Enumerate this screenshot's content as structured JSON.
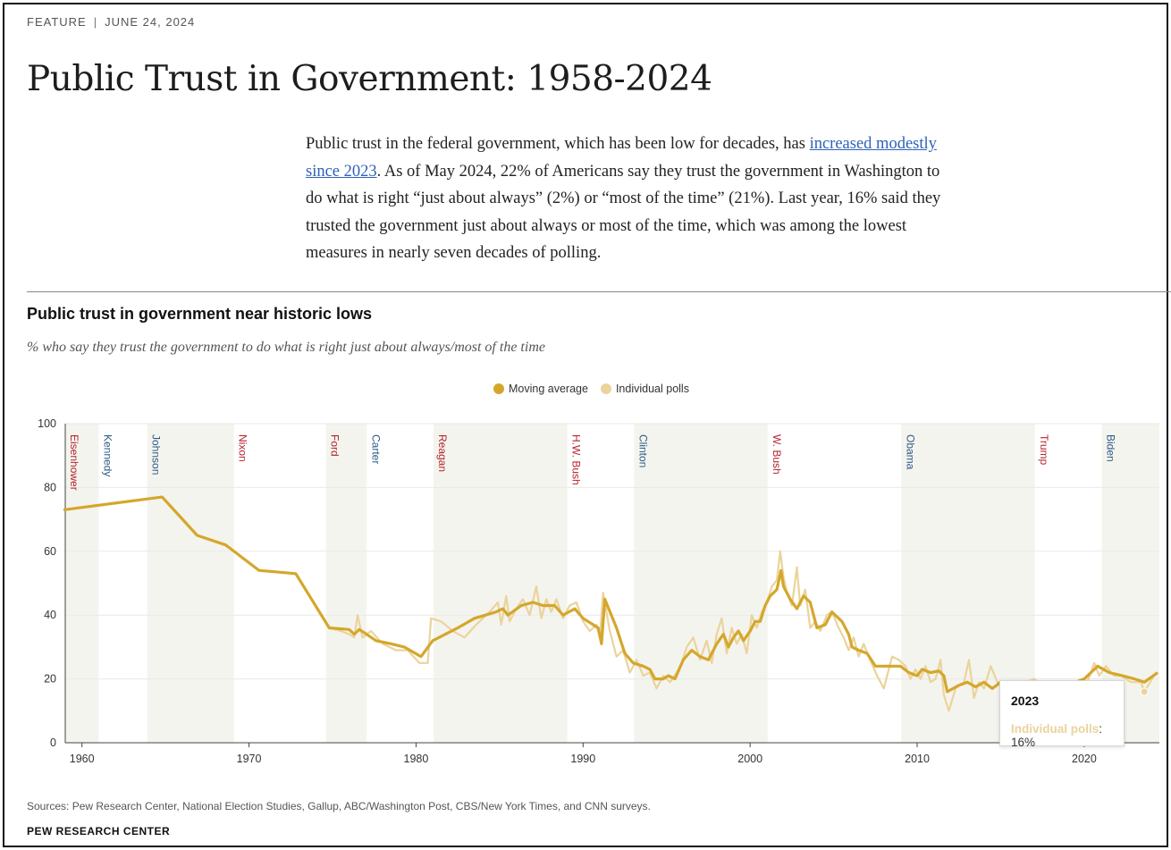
{
  "kicker": {
    "section": "FEATURE",
    "separator": "|",
    "date": "JUNE 24, 2024"
  },
  "headline": "Public Trust in Government: 1958-2024",
  "intro": {
    "before_link": "Public trust in the federal government, which has been low for decades, has ",
    "link_text": "increased modestly since 2023",
    "after_link": ". As of May 2024, 22% of Americans say they trust the government in Washington to do what is right “just about always” (2%) or “most of the time” (21%). Last year, 16% said they trusted the government just about always or most of the time, which was among the lowest measures in nearly seven decades of polling."
  },
  "colors": {
    "moving_average": "#d4a72c",
    "individual_polls": "#ebd39b",
    "republican": "#b5242c",
    "democrat": "#2c5a87",
    "term_band": "#f4f4ef",
    "link": "#2d62b8"
  },
  "footer": {
    "sources": "Sources: Pew Research Center, National Election Studies, Gallup, ABC/Washington Post, CBS/New York Times, and CNN surveys.",
    "credit": "PEW RESEARCH CENTER"
  },
  "tooltip": {
    "year": "2023",
    "series": "Individual polls",
    "value": "16%"
  },
  "chart_data": {
    "type": "line",
    "title": "Public trust in government near historic lows",
    "subtitle": "% who say they trust the government to do what is right just about always/most of the time",
    "xlabel": "",
    "ylabel": "",
    "xlim": [
      1959,
      2024.5
    ],
    "ylim": [
      0,
      100
    ],
    "x_ticks": [
      1960,
      1970,
      1980,
      1990,
      2000,
      2010,
      2020
    ],
    "y_ticks": [
      0,
      20,
      40,
      60,
      80,
      100
    ],
    "grid": true,
    "legend_position": "top-center",
    "legend": [
      "Moving average",
      "Individual polls"
    ],
    "presidents": [
      {
        "name": "Eisenhower",
        "start": 1959,
        "end": 1961,
        "party": "R",
        "shaded": true
      },
      {
        "name": "Kennedy",
        "start": 1961,
        "end": 1963.9,
        "party": "D",
        "shaded": false
      },
      {
        "name": "Johnson",
        "start": 1963.9,
        "end": 1969.1,
        "party": "D",
        "shaded": true
      },
      {
        "name": "Nixon",
        "start": 1969.1,
        "end": 1974.6,
        "party": "R",
        "shaded": false
      },
      {
        "name": "Ford",
        "start": 1974.6,
        "end": 1977.05,
        "party": "R",
        "shaded": true
      },
      {
        "name": "Carter",
        "start": 1977.05,
        "end": 1981.05,
        "party": "D",
        "shaded": false
      },
      {
        "name": "Reagan",
        "start": 1981.05,
        "end": 1989.05,
        "party": "R",
        "shaded": true
      },
      {
        "name": "H.W. Bush",
        "start": 1989.05,
        "end": 1993.05,
        "party": "R",
        "shaded": false
      },
      {
        "name": "Clinton",
        "start": 1993.05,
        "end": 2001.05,
        "party": "D",
        "shaded": true
      },
      {
        "name": "W. Bush",
        "start": 2001.05,
        "end": 2009.05,
        "party": "R",
        "shaded": false
      },
      {
        "name": "Obama",
        "start": 2009.05,
        "end": 2017.05,
        "party": "D",
        "shaded": true
      },
      {
        "name": "Trump",
        "start": 2017.05,
        "end": 2021.05,
        "party": "R",
        "shaded": false
      },
      {
        "name": "Biden",
        "start": 2021.05,
        "end": 2024.5,
        "party": "D",
        "shaded": true
      }
    ],
    "series": [
      {
        "name": "Moving average",
        "points": [
          [
            1958.9,
            73
          ],
          [
            1964.8,
            77
          ],
          [
            1966.9,
            65
          ],
          [
            1968.6,
            62
          ],
          [
            1970.6,
            54
          ],
          [
            1972.8,
            53
          ],
          [
            1974.8,
            36
          ],
          [
            1976.0,
            35.5
          ],
          [
            1976.3,
            34
          ],
          [
            1976.6,
            35.5
          ],
          [
            1976.9,
            34.5
          ],
          [
            1977.6,
            32
          ],
          [
            1978.5,
            31
          ],
          [
            1979.3,
            30
          ],
          [
            1980.3,
            27
          ],
          [
            1981.0,
            32
          ],
          [
            1982.5,
            36
          ],
          [
            1983.5,
            39
          ],
          [
            1984.8,
            41
          ],
          [
            1985.2,
            42
          ],
          [
            1985.5,
            40
          ],
          [
            1986.3,
            43
          ],
          [
            1987.0,
            44
          ],
          [
            1987.6,
            43
          ],
          [
            1988.3,
            43
          ],
          [
            1988.8,
            40
          ],
          [
            1989.5,
            42
          ],
          [
            1990.0,
            39
          ],
          [
            1990.6,
            37
          ],
          [
            1990.9,
            36
          ],
          [
            1991.1,
            31
          ],
          [
            1991.3,
            45
          ],
          [
            1992.0,
            36
          ],
          [
            1992.5,
            28
          ],
          [
            1993.0,
            25
          ],
          [
            1993.6,
            24
          ],
          [
            1994.0,
            23
          ],
          [
            1994.3,
            20
          ],
          [
            1994.8,
            20
          ],
          [
            1995.1,
            21
          ],
          [
            1995.5,
            20
          ],
          [
            1996.0,
            26
          ],
          [
            1996.5,
            29
          ],
          [
            1997.0,
            27
          ],
          [
            1997.5,
            26
          ],
          [
            1998.0,
            31
          ],
          [
            1998.4,
            34
          ],
          [
            1998.7,
            30
          ],
          [
            1999.0,
            33
          ],
          [
            1999.3,
            35
          ],
          [
            1999.6,
            32
          ],
          [
            2000.0,
            35
          ],
          [
            2000.3,
            38
          ],
          [
            2000.6,
            38
          ],
          [
            2000.9,
            43
          ],
          [
            2001.2,
            46
          ],
          [
            2001.6,
            48
          ],
          [
            2001.85,
            54
          ],
          [
            2002.0,
            49
          ],
          [
            2002.4,
            45
          ],
          [
            2002.8,
            42
          ],
          [
            2003.2,
            46
          ],
          [
            2003.6,
            44
          ],
          [
            2004.0,
            36
          ],
          [
            2004.5,
            37
          ],
          [
            2004.9,
            41
          ],
          [
            2005.5,
            38
          ],
          [
            2005.9,
            34
          ],
          [
            2006.1,
            30
          ],
          [
            2006.5,
            29
          ],
          [
            2007.0,
            28
          ],
          [
            2007.5,
            24
          ],
          [
            2008.5,
            24
          ],
          [
            2009.0,
            24
          ],
          [
            2009.5,
            22
          ],
          [
            2010.0,
            21
          ],
          [
            2010.3,
            23
          ],
          [
            2010.8,
            22
          ],
          [
            2011.3,
            22.5
          ],
          [
            2011.6,
            21
          ],
          [
            2011.8,
            16
          ],
          [
            2012.5,
            18
          ],
          [
            2013.0,
            19
          ],
          [
            2013.5,
            17.5
          ],
          [
            2014.0,
            19
          ],
          [
            2014.5,
            17
          ],
          [
            2015.0,
            19
          ],
          [
            2016.0,
            19
          ],
          [
            2017.0,
            19
          ],
          [
            2018.0,
            18
          ],
          [
            2019.0,
            18
          ],
          [
            2020.0,
            20
          ],
          [
            2020.8,
            24
          ],
          [
            2021.5,
            22
          ],
          [
            2022.3,
            21
          ],
          [
            2023.0,
            20
          ],
          [
            2023.6,
            19
          ],
          [
            2024.4,
            22
          ]
        ]
      },
      {
        "name": "Individual polls",
        "points": [
          [
            1958.9,
            73
          ],
          [
            1964.8,
            77
          ],
          [
            1966.9,
            65
          ],
          [
            1968.6,
            62
          ],
          [
            1970.6,
            54
          ],
          [
            1972.8,
            53
          ],
          [
            1974.8,
            36
          ],
          [
            1975.5,
            35
          ],
          [
            1976.0,
            34
          ],
          [
            1976.3,
            33
          ],
          [
            1976.5,
            40
          ],
          [
            1976.8,
            33
          ],
          [
            1977.3,
            35
          ],
          [
            1978.0,
            31
          ],
          [
            1978.8,
            29
          ],
          [
            1979.5,
            29
          ],
          [
            1980.2,
            25
          ],
          [
            1980.7,
            25
          ],
          [
            1980.9,
            39
          ],
          [
            1981.5,
            38
          ],
          [
            1982.2,
            35
          ],
          [
            1982.9,
            33
          ],
          [
            1983.6,
            37
          ],
          [
            1984.4,
            41
          ],
          [
            1984.9,
            44
          ],
          [
            1985.1,
            37
          ],
          [
            1985.4,
            46
          ],
          [
            1985.6,
            38
          ],
          [
            1986.0,
            42
          ],
          [
            1986.4,
            45
          ],
          [
            1986.8,
            40
          ],
          [
            1987.2,
            49
          ],
          [
            1987.5,
            39
          ],
          [
            1987.8,
            45
          ],
          [
            1988.1,
            41
          ],
          [
            1988.4,
            45
          ],
          [
            1988.8,
            39
          ],
          [
            1989.2,
            43
          ],
          [
            1989.6,
            44
          ],
          [
            1990.0,
            38
          ],
          [
            1990.4,
            35
          ],
          [
            1990.8,
            37
          ],
          [
            1991.0,
            33
          ],
          [
            1991.2,
            47
          ],
          [
            1991.6,
            35
          ],
          [
            1992.0,
            27
          ],
          [
            1992.4,
            29
          ],
          [
            1992.8,
            22
          ],
          [
            1993.2,
            26
          ],
          [
            1993.6,
            21
          ],
          [
            1994.0,
            22
          ],
          [
            1994.4,
            17
          ],
          [
            1994.8,
            21
          ],
          [
            1995.2,
            19
          ],
          [
            1995.6,
            22
          ],
          [
            1995.9,
            25
          ],
          [
            1996.2,
            30
          ],
          [
            1996.6,
            33
          ],
          [
            1997.0,
            26
          ],
          [
            1997.4,
            32
          ],
          [
            1997.7,
            25
          ],
          [
            1998.0,
            34
          ],
          [
            1998.3,
            39
          ],
          [
            1998.6,
            28
          ],
          [
            1998.9,
            36
          ],
          [
            1999.2,
            31
          ],
          [
            1999.5,
            34
          ],
          [
            1999.8,
            28
          ],
          [
            2000.1,
            40
          ],
          [
            2000.4,
            36
          ],
          [
            2000.7,
            41
          ],
          [
            2001.0,
            44
          ],
          [
            2001.3,
            49
          ],
          [
            2001.6,
            51
          ],
          [
            2001.8,
            60
          ],
          [
            2002.0,
            52
          ],
          [
            2002.2,
            47
          ],
          [
            2002.5,
            43
          ],
          [
            2002.8,
            55
          ],
          [
            2003.0,
            43
          ],
          [
            2003.3,
            48
          ],
          [
            2003.6,
            36
          ],
          [
            2003.9,
            38
          ],
          [
            2004.2,
            35
          ],
          [
            2004.6,
            40
          ],
          [
            2004.9,
            41
          ],
          [
            2005.3,
            36
          ],
          [
            2005.6,
            33
          ],
          [
            2005.9,
            29
          ],
          [
            2006.2,
            33
          ],
          [
            2006.5,
            27
          ],
          [
            2006.8,
            31
          ],
          [
            2007.1,
            27
          ],
          [
            2007.6,
            21
          ],
          [
            2008.0,
            17
          ],
          [
            2008.5,
            27
          ],
          [
            2008.9,
            26
          ],
          [
            2009.3,
            24
          ],
          [
            2009.6,
            20
          ],
          [
            2009.9,
            23
          ],
          [
            2010.2,
            20
          ],
          [
            2010.5,
            24
          ],
          [
            2010.8,
            19
          ],
          [
            2011.1,
            20
          ],
          [
            2011.4,
            26
          ],
          [
            2011.6,
            15
          ],
          [
            2011.9,
            10
          ],
          [
            2012.3,
            17
          ],
          [
            2012.8,
            19
          ],
          [
            2013.1,
            26
          ],
          [
            2013.4,
            14
          ],
          [
            2013.7,
            19
          ],
          [
            2014.0,
            17
          ],
          [
            2014.4,
            24
          ],
          [
            2014.8,
            19
          ],
          [
            2015.2,
            19
          ],
          [
            2015.6,
            14
          ],
          [
            2016.0,
            19
          ],
          [
            2016.5,
            19
          ],
          [
            2017.0,
            20
          ],
          [
            2017.5,
            18
          ],
          [
            2018.0,
            17
          ],
          [
            2018.6,
            17
          ],
          [
            2019.2,
            17
          ],
          [
            2019.7,
            17
          ],
          [
            2020.1,
            18
          ],
          [
            2020.4,
            22
          ],
          [
            2020.6,
            25
          ],
          [
            2020.9,
            21
          ],
          [
            2021.3,
            24
          ],
          [
            2021.8,
            21
          ],
          [
            2022.2,
            21
          ],
          [
            2022.8,
            19
          ],
          [
            2023.4,
            19
          ],
          [
            2023.6,
            16
          ],
          [
            2024.3,
            22
          ]
        ]
      }
    ]
  }
}
